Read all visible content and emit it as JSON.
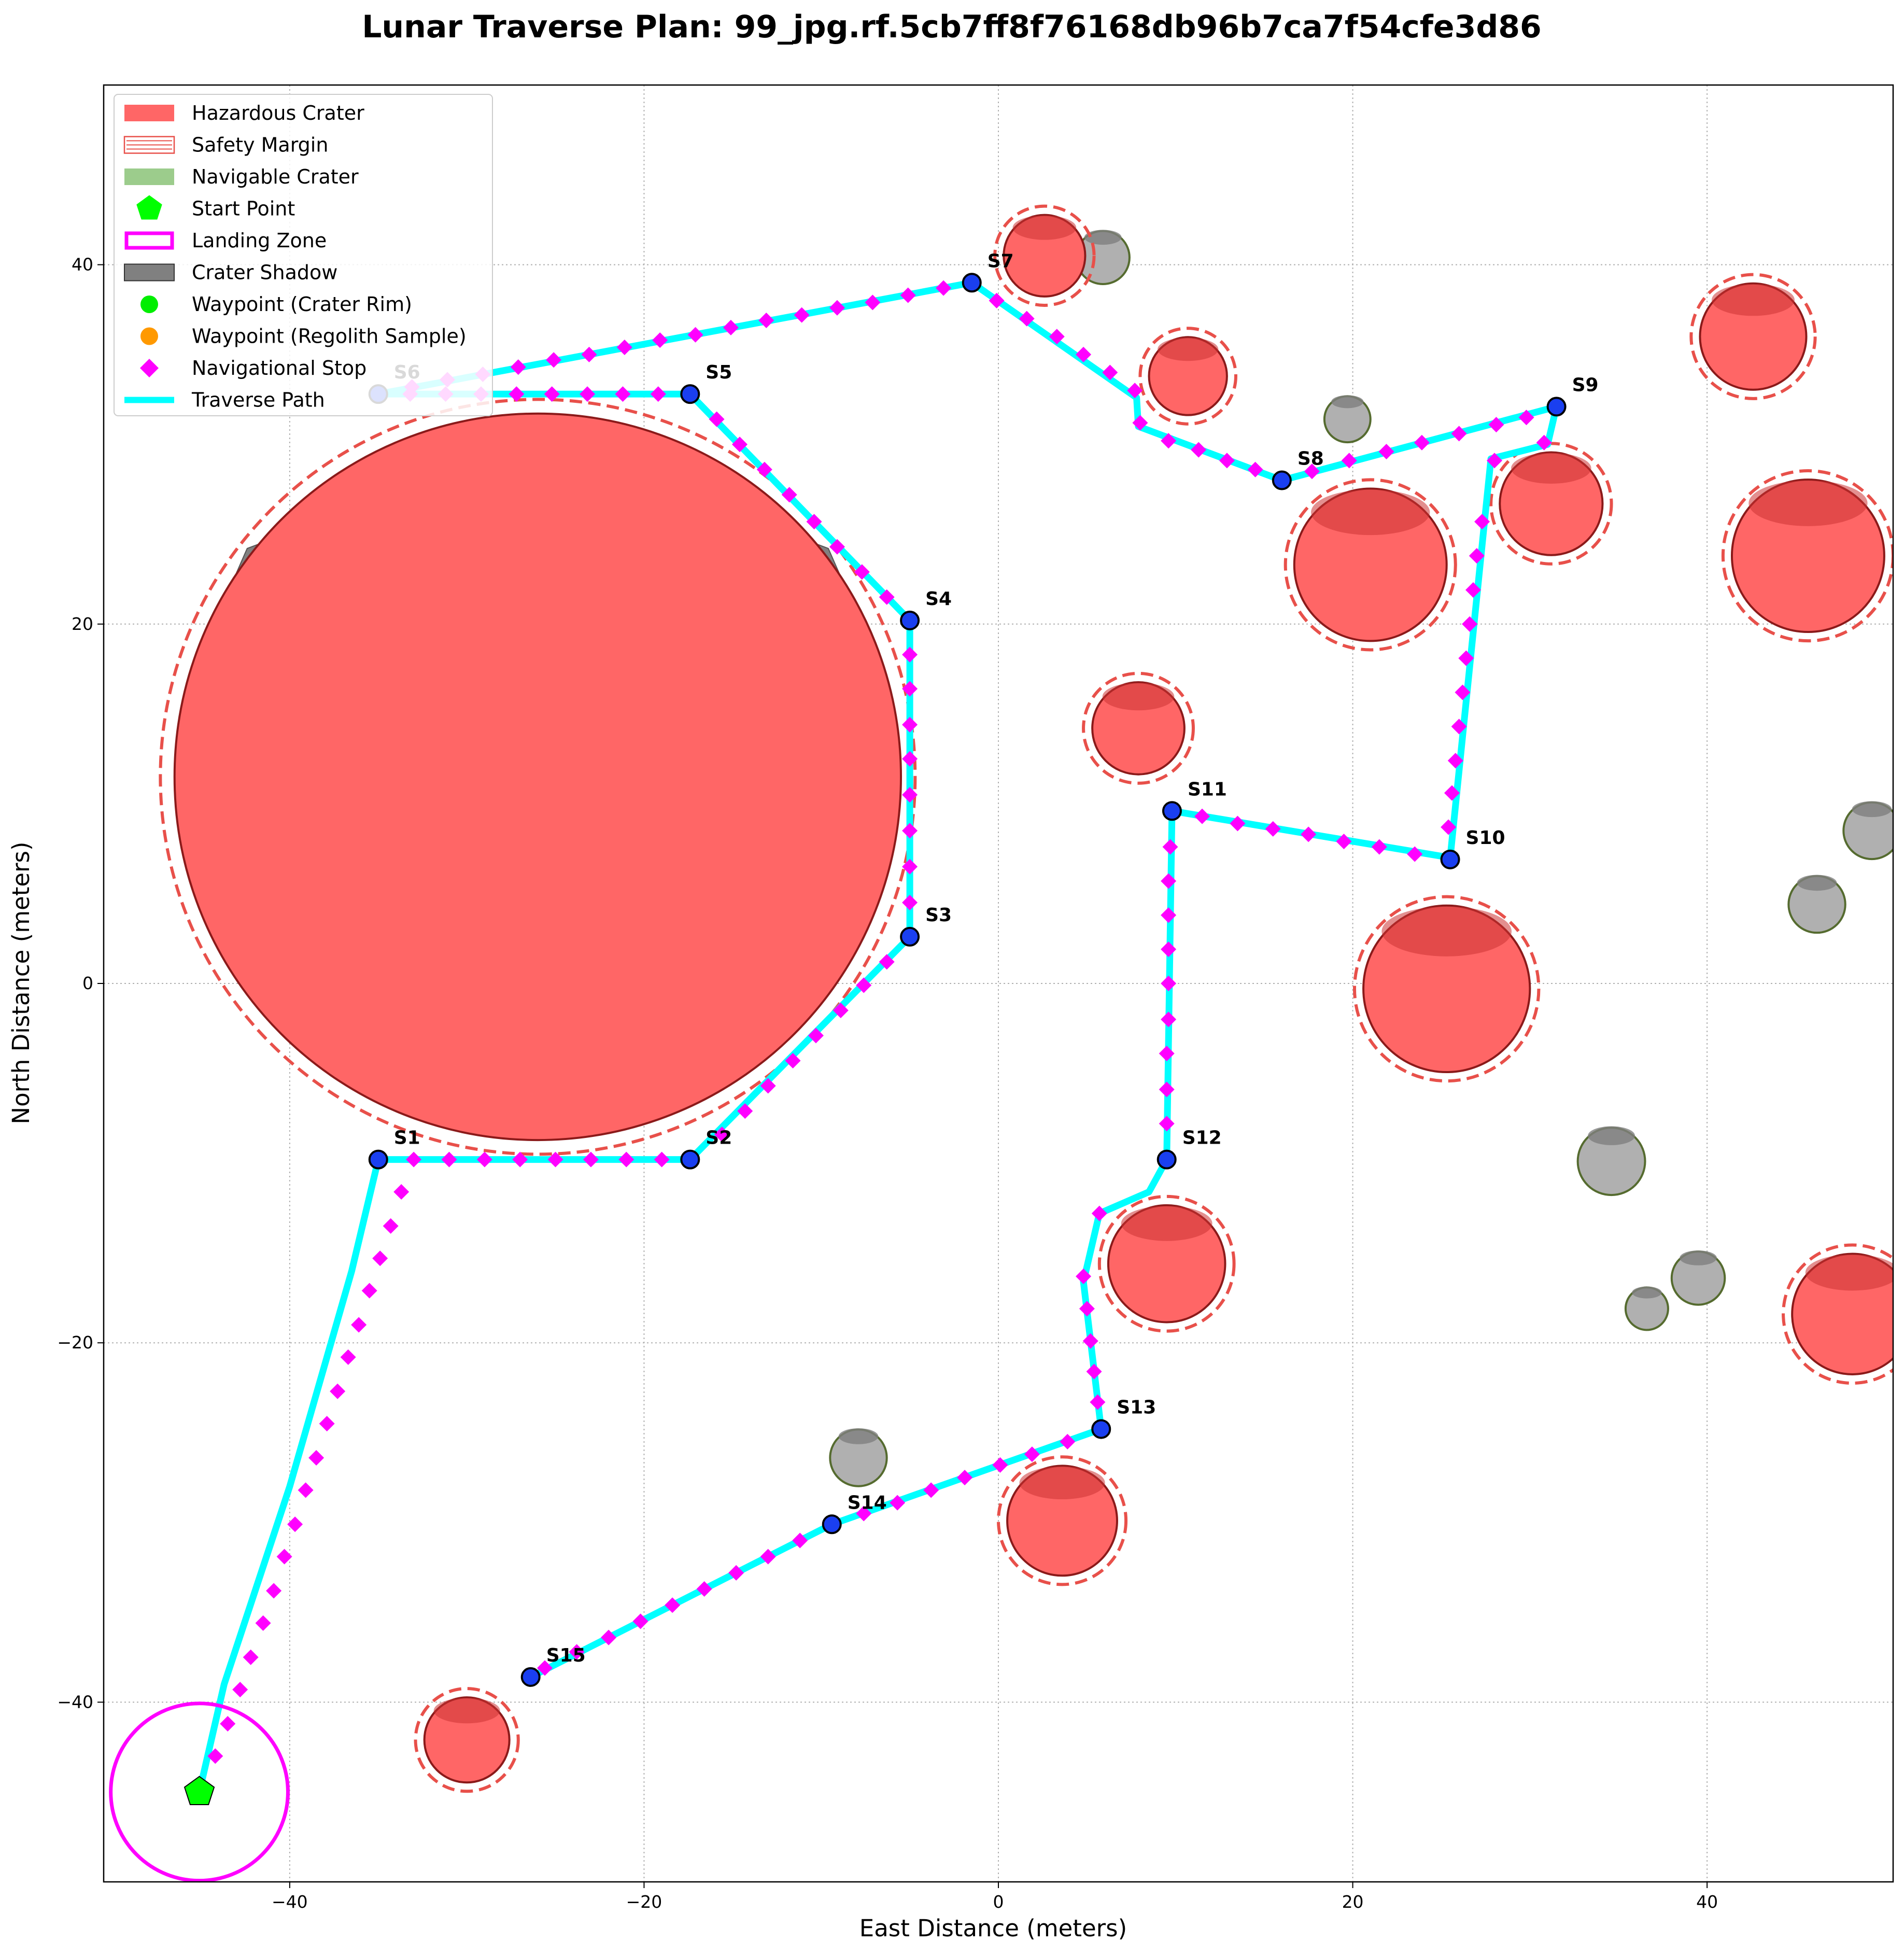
{
  "chart_data": {
    "type": "scatter",
    "title": "Lunar Traverse Plan: 99_jpg.rf.5cb7ff8f76168db96b7ca7f54cfe3d86",
    "xlabel": "East Distance (meters)",
    "ylabel": "North Distance (meters)",
    "xlim": [
      -50.5,
      50.5
    ],
    "ylim": [
      -50,
      50
    ],
    "xticks": [
      -40,
      -20,
      0,
      20,
      40
    ],
    "yticks": [
      -40,
      -20,
      0,
      20,
      40
    ],
    "grid": true,
    "legend_position": "top-left",
    "legend": [
      {
        "label": "Hazardous Crater",
        "kind": "hazard"
      },
      {
        "label": "Safety Margin",
        "kind": "margin"
      },
      {
        "label": "Navigable Crater",
        "kind": "navigable"
      },
      {
        "label": "Start Point",
        "kind": "start"
      },
      {
        "label": "Landing Zone",
        "kind": "landing"
      },
      {
        "label": "Crater Shadow",
        "kind": "shadow"
      },
      {
        "label": "Waypoint (Crater Rim)",
        "kind": "wp-rim"
      },
      {
        "label": "Waypoint (Regolith Sample)",
        "kind": "wp-regolith"
      },
      {
        "label": "Navigational Stop",
        "kind": "navstop"
      },
      {
        "label": "Traverse Path",
        "kind": "path"
      }
    ],
    "colors": {
      "hazard": "#ff6666",
      "hazard_edge": "#8b1a1a",
      "margin": "#e8504a",
      "navigable": "#9ccc8c",
      "navigable_edge": "#556b2f",
      "gray_crater": "#b0b0b0",
      "shadow": "#808080",
      "start": "#00ff00",
      "landing": "#ff00ff",
      "path": "#00ffff",
      "navstop": "#ff00ff",
      "stop": "#1a3ff0",
      "wp_rim": "#00ee00",
      "wp_regolith": "#ff9900"
    },
    "hazardous_craters": [
      {
        "x": -26,
        "y": 11.5,
        "r": 20.5
      },
      {
        "x": 2.6,
        "y": 40.5,
        "r": 2.3
      },
      {
        "x": 10.7,
        "y": 33.8,
        "r": 2.2
      },
      {
        "x": 21,
        "y": 23.3,
        "r": 4.3
      },
      {
        "x": 31.2,
        "y": 26.7,
        "r": 2.9
      },
      {
        "x": 42.6,
        "y": 36,
        "r": 3.0
      },
      {
        "x": 45.7,
        "y": 23.8,
        "r": 4.3
      },
      {
        "x": 7.9,
        "y": 14.2,
        "r": 2.6
      },
      {
        "x": 25.3,
        "y": -0.3,
        "r": 4.7
      },
      {
        "x": 9.5,
        "y": -15.6,
        "r": 3.3
      },
      {
        "x": 48.2,
        "y": -18.4,
        "r": 3.4
      },
      {
        "x": 3.6,
        "y": -29.9,
        "r": 3.1
      },
      {
        "x": -30,
        "y": -42.1,
        "r": 2.4
      }
    ],
    "gray_craters": [
      {
        "x": 5.9,
        "y": 40.4,
        "r": 1.5
      },
      {
        "x": 19.7,
        "y": 31.4,
        "r": 1.3
      },
      {
        "x": 49.3,
        "y": 8.5,
        "r": 1.6
      },
      {
        "x": 46.2,
        "y": 4.4,
        "r": 1.6
      },
      {
        "x": 34.6,
        "y": -9.9,
        "r": 1.9
      },
      {
        "x": 39.5,
        "y": -16.4,
        "r": 1.5
      },
      {
        "x": 36.6,
        "y": -18.1,
        "r": 1.2
      },
      {
        "x": -7.9,
        "y": -26.4,
        "r": 1.6
      }
    ],
    "start_point": {
      "x": -45.1,
      "y": -45
    },
    "landing_zone": {
      "x": -45.1,
      "y": -45,
      "r": 5
    },
    "traverse_path": [
      [
        -45.1,
        -45
      ],
      [
        -43.7,
        -39
      ],
      [
        -40,
        -28
      ],
      [
        -36.5,
        -16
      ],
      [
        -35,
        -9.8
      ],
      [
        -17.4,
        -9.8
      ],
      [
        -5,
        2.6
      ],
      [
        -5,
        20.2
      ],
      [
        -17.4,
        32.8
      ],
      [
        -35,
        32.8
      ],
      [
        -17.4,
        32.8
      ],
      [
        -35,
        32.8
      ],
      [
        -1.5,
        39
      ],
      [
        7.8,
        32.6
      ],
      [
        7.9,
        31
      ],
      [
        16,
        28
      ],
      [
        31.5,
        32.1
      ],
      [
        31,
        30
      ],
      [
        27.8,
        29.2
      ],
      [
        25.5,
        7
      ],
      [
        9.8,
        9.6
      ],
      [
        9.5,
        -9.8
      ],
      [
        8.5,
        -11.6
      ],
      [
        5.7,
        -12.8
      ],
      [
        4.8,
        -16.6
      ],
      [
        5.8,
        -24.8
      ],
      [
        -9.4,
        -30.1
      ],
      [
        -26.4,
        -38.6
      ]
    ],
    "stops": [
      {
        "label": "S1",
        "x": -35,
        "y": -9.8
      },
      {
        "label": "S2",
        "x": -17.4,
        "y": -9.8
      },
      {
        "label": "S3",
        "x": -5,
        "y": 2.6
      },
      {
        "label": "S4",
        "x": -5,
        "y": 20.2
      },
      {
        "label": "S5",
        "x": -17.4,
        "y": 32.8
      },
      {
        "label": "S6",
        "x": -35,
        "y": 32.8
      },
      {
        "label": "S7",
        "x": -1.5,
        "y": 39
      },
      {
        "label": "S8",
        "x": 16,
        "y": 28
      },
      {
        "label": "S9",
        "x": 31.5,
        "y": 32.1
      },
      {
        "label": "S10",
        "x": 25.5,
        "y": 6.9
      },
      {
        "label": "S11",
        "x": 9.8,
        "y": 9.6
      },
      {
        "label": "S12",
        "x": 9.5,
        "y": -9.8
      },
      {
        "label": "S13",
        "x": 5.8,
        "y": -24.8
      },
      {
        "label": "S14",
        "x": -9.4,
        "y": -30.1
      },
      {
        "label": "S15",
        "x": -26.4,
        "y": -38.6
      }
    ],
    "nav_stops": [
      [
        -44.2,
        -43
      ],
      [
        -43.5,
        -41.2
      ],
      [
        -42.8,
        -39.3
      ],
      [
        -42.2,
        -37.5
      ],
      [
        -41.5,
        -35.6
      ],
      [
        -40.9,
        -33.8
      ],
      [
        -40.3,
        -31.9
      ],
      [
        -39.7,
        -30.1
      ],
      [
        -39.1,
        -28.2
      ],
      [
        -38.5,
        -26.4
      ],
      [
        -37.9,
        -24.5
      ],
      [
        -37.3,
        -22.7
      ],
      [
        -36.7,
        -20.8
      ],
      [
        -36.1,
        -19
      ],
      [
        -35.5,
        -17.1
      ],
      [
        -34.9,
        -15.3
      ],
      [
        -34.3,
        -13.5
      ],
      [
        -33.7,
        -11.6
      ],
      [
        -33,
        -9.8
      ],
      [
        -31,
        -9.8
      ],
      [
        -29,
        -9.8
      ],
      [
        -27,
        -9.8
      ],
      [
        -25,
        -9.8
      ],
      [
        -23,
        -9.8
      ],
      [
        -21,
        -9.8
      ],
      [
        -19,
        -9.8
      ],
      [
        -15.6,
        -8.4
      ],
      [
        -14.3,
        -7.1
      ],
      [
        -13,
        -5.7
      ],
      [
        -11.6,
        -4.3
      ],
      [
        -10.3,
        -2.9
      ],
      [
        -8.9,
        -1.5
      ],
      [
        -7.6,
        -0.1
      ],
      [
        -6.3,
        1.2
      ],
      [
        -5,
        4.5
      ],
      [
        -5,
        6.5
      ],
      [
        -5,
        8.5
      ],
      [
        -5,
        10.5
      ],
      [
        -5,
        12.5
      ],
      [
        -5,
        14.4
      ],
      [
        -5,
        16.4
      ],
      [
        -5,
        18.3
      ],
      [
        -6.3,
        21.5
      ],
      [
        -7.7,
        22.9
      ],
      [
        -9.1,
        24.3
      ],
      [
        -10.4,
        25.7
      ],
      [
        -11.8,
        27.2
      ],
      [
        -13.2,
        28.6
      ],
      [
        -14.6,
        30
      ],
      [
        -15.9,
        31.4
      ],
      [
        -19.2,
        32.8
      ],
      [
        -21.2,
        32.8
      ],
      [
        -23.2,
        32.8
      ],
      [
        -25.2,
        32.8
      ],
      [
        -27.2,
        32.8
      ],
      [
        -29.2,
        32.8
      ],
      [
        -31.2,
        32.8
      ],
      [
        -33.2,
        32.8
      ],
      [
        -33.1,
        33.2
      ],
      [
        -31.1,
        33.6
      ],
      [
        -29.1,
        33.9
      ],
      [
        -27.1,
        34.3
      ],
      [
        -25.1,
        34.7
      ],
      [
        -23.1,
        35
      ],
      [
        -21.1,
        35.4
      ],
      [
        -19.1,
        35.8
      ],
      [
        -17.1,
        36.1
      ],
      [
        -15.1,
        36.5
      ],
      [
        -13.1,
        36.9
      ],
      [
        -11.1,
        37.2
      ],
      [
        -9.1,
        37.6
      ],
      [
        -7.1,
        37.9
      ],
      [
        -5.1,
        38.3
      ],
      [
        -3.1,
        38.7
      ],
      [
        -0.1,
        38
      ],
      [
        1.6,
        37
      ],
      [
        3.3,
        36
      ],
      [
        4.8,
        35
      ],
      [
        6.3,
        34
      ],
      [
        7.7,
        33
      ],
      [
        8,
        31.2
      ],
      [
        9.6,
        30.2
      ],
      [
        11.3,
        29.7
      ],
      [
        12.9,
        29.1
      ],
      [
        14.5,
        28.6
      ],
      [
        17.7,
        28.5
      ],
      [
        19.8,
        29.1
      ],
      [
        21.9,
        29.6
      ],
      [
        23.9,
        30.1
      ],
      [
        26,
        30.6
      ],
      [
        28.1,
        31.1
      ],
      [
        29.8,
        31.5
      ],
      [
        30.8,
        30.1
      ],
      [
        28,
        29.1
      ],
      [
        27.3,
        25.7
      ],
      [
        27,
        23.8
      ],
      [
        26.8,
        21.9
      ],
      [
        26.6,
        20
      ],
      [
        26.4,
        18.1
      ],
      [
        26.2,
        16.2
      ],
      [
        26,
        14.3
      ],
      [
        25.8,
        12.4
      ],
      [
        25.6,
        10.6
      ],
      [
        25.4,
        8.7
      ],
      [
        23.5,
        7.2
      ],
      [
        21.5,
        7.6
      ],
      [
        19.5,
        7.9
      ],
      [
        17.5,
        8.3
      ],
      [
        15.5,
        8.6
      ],
      [
        13.5,
        8.9
      ],
      [
        11.5,
        9.3
      ],
      [
        9.7,
        7.6
      ],
      [
        9.6,
        5.7
      ],
      [
        9.6,
        3.8
      ],
      [
        9.6,
        1.9
      ],
      [
        9.6,
        0
      ],
      [
        9.6,
        -2
      ],
      [
        9.5,
        -3.9
      ],
      [
        9.5,
        -5.9
      ],
      [
        9.5,
        -7.8
      ],
      [
        5.7,
        -12.8
      ],
      [
        4.8,
        -16.3
      ],
      [
        5,
        -18.1
      ],
      [
        5.2,
        -19.9
      ],
      [
        5.4,
        -21.6
      ],
      [
        5.6,
        -23.3
      ],
      [
        3.9,
        -25.5
      ],
      [
        1.9,
        -26.2
      ],
      [
        0.1,
        -26.8
      ],
      [
        -1.9,
        -27.5
      ],
      [
        -3.8,
        -28.2
      ],
      [
        -5.7,
        -28.9
      ],
      [
        -7.6,
        -29.5
      ],
      [
        -11.2,
        -31
      ],
      [
        -13,
        -31.9
      ],
      [
        -14.8,
        -32.8
      ],
      [
        -16.6,
        -33.7
      ],
      [
        -18.4,
        -34.6
      ],
      [
        -20.2,
        -35.5
      ],
      [
        -22,
        -36.4
      ],
      [
        -23.8,
        -37.2
      ],
      [
        -25.6,
        -38.1
      ]
    ]
  }
}
